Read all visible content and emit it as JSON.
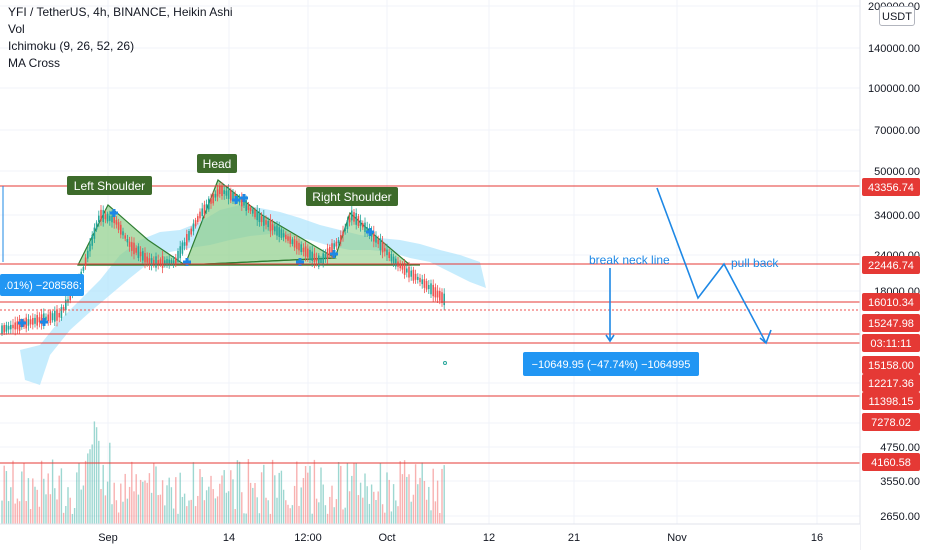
{
  "legend": {
    "symbol_line": "YFI / TetherUS, 4h, BINANCE, Heikin Ashi",
    "indicators": [
      "Vol",
      "Ichimoku (9, 26, 52, 26)",
      "MA Cross"
    ]
  },
  "currency": "USDT",
  "colors": {
    "bull": "#26a69a",
    "bear": "#ef5350",
    "level_line": "#e53935",
    "pattern_fill": "#8fce8a",
    "pattern_stroke": "#2e7d32",
    "label_bg": "#3d6b2b",
    "cloud": "#b3e5fc",
    "projection": "#1e88e5",
    "measure_bg": "#2196f3",
    "tag_red": "#e53935",
    "tag_dark": "#131722"
  },
  "chart_data": {
    "type": "candlestick",
    "y_axis_labels": [
      "200000.00",
      "140000.00",
      "100000.00",
      "70000.00",
      "50000.00",
      "34000.00",
      "24000.00",
      "18000.00",
      "12217.36",
      "7278.02",
      "4750.00",
      "3550.00",
      "2650.00"
    ],
    "x_axis_labels": [
      "Sep",
      "14",
      "12:00",
      "Oct",
      "12",
      "21",
      "Nov",
      "16"
    ],
    "price_levels": [
      "43356.74",
      "22446.74",
      "16010.34",
      "11398.15",
      "4160.58"
    ],
    "price_tags": [
      {
        "text": "43356.74",
        "style": "red"
      },
      {
        "text": "22446.74",
        "style": "red"
      },
      {
        "text": "16010.34",
        "style": "red"
      },
      {
        "text": "15247.98",
        "style": "red"
      },
      {
        "text": "03:11:11",
        "style": "red"
      },
      {
        "text": "15158.00",
        "style": "red"
      },
      {
        "text": "12217.36",
        "style": "red"
      },
      {
        "text": "11398.15",
        "style": "red"
      },
      {
        "text": "7278.02",
        "style": "red"
      },
      {
        "text": "4160.58",
        "style": "red"
      }
    ],
    "annotations": {
      "left_shoulder": "Left Shoulder",
      "head": "Head",
      "right_shoulder": "Right Shoulder",
      "break_neck_line": "break neck line",
      "pull_back": "pull back",
      "measure": "−10649.95 (−47.74%) −1064995",
      "measure_left_partial": ".01%) −208586:"
    }
  }
}
